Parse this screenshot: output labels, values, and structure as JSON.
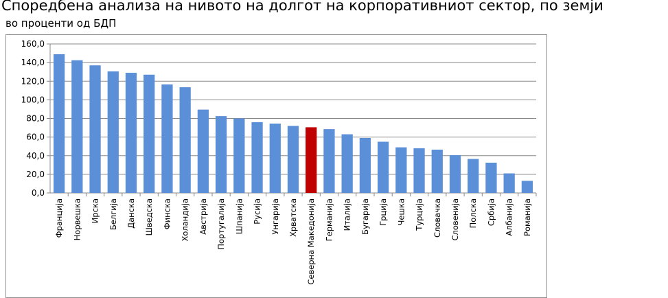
{
  "chart_data": {
    "type": "bar",
    "title": "Споредбена анализа на нивото на долгот на корпоративниот сектор, по земји",
    "subtitle": "во проценти од БДП",
    "xlabel": "",
    "ylabel": "",
    "ylim": [
      0,
      160
    ],
    "yticks": [
      "0,0",
      "20,0",
      "40,0",
      "60,0",
      "80,0",
      "100,0",
      "120,0",
      "140,0",
      "160,0"
    ],
    "grid": true,
    "legend": "none",
    "colors": {
      "bar": "#5b8fd8",
      "highlight": "#c00000",
      "grid": "#888888",
      "axis": "#888888"
    },
    "highlight_category": "Северна Македонија",
    "categories": [
      "Франција",
      "Норвешка",
      "Ирска",
      "Белгија",
      "Данска",
      "Шведска",
      "Финска",
      "Холандија",
      "Австрија",
      "Португалија",
      "Шпанија",
      "Русија",
      "Унгарија",
      "Хрватска",
      "Северна Македонија",
      "Германија",
      "Италија",
      "Бугарија",
      "Грција",
      "Чешка",
      "Турција",
      "Словачка",
      "Словенија",
      "Полска",
      "Србија",
      "Албанија",
      "Романија"
    ],
    "values": [
      149.0,
      142.5,
      137.0,
      130.5,
      129.0,
      127.0,
      116.5,
      113.5,
      89.5,
      82.5,
      80.0,
      76.0,
      74.5,
      72.0,
      70.5,
      68.5,
      63.0,
      59.0,
      55.0,
      49.0,
      48.0,
      46.5,
      40.5,
      36.5,
      32.5,
      21.0,
      13.0
    ]
  }
}
